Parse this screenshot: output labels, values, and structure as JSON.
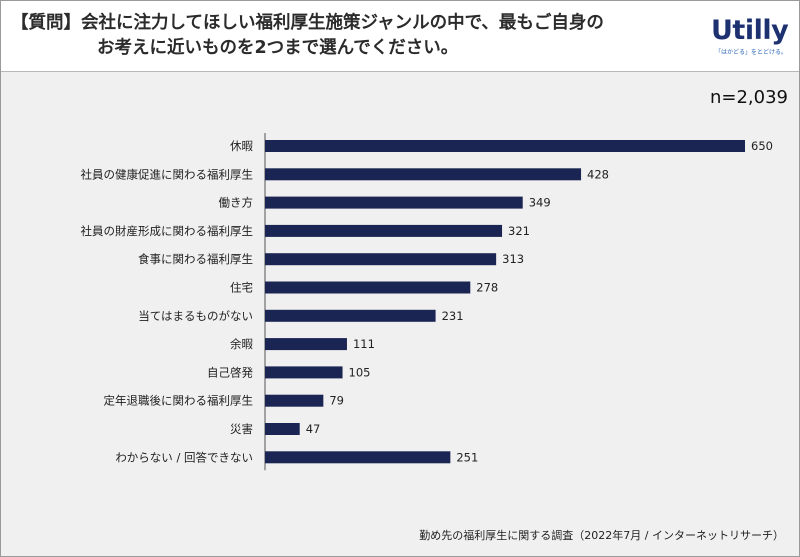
{
  "header": {
    "question_tag": "【質問】",
    "question_line1": "会社に注力してほしい福利厚生施策ジャンルの中で、最もご自身の",
    "question_line2": "お考えに近いものを2つまで選んでください。"
  },
  "logo": {
    "text": "Utilly",
    "tagline": "「はかどる」をとどける。",
    "color": "#1d3170"
  },
  "sample_size": "n=2,039",
  "source": "勤め先の福利厚生に関する調査（2022年7月 / インターネットリサーチ）",
  "chart_data": {
    "type": "bar",
    "orientation": "horizontal",
    "title": "",
    "xlabel": "",
    "ylabel": "",
    "categories": [
      "休暇",
      "社員の健康促進に関わる福利厚生",
      "働き方",
      "社員の財産形成に関わる福利厚生",
      "食事に関わる福利厚生",
      "住宅",
      "当てはまるものがない",
      "余暇",
      "自己啓発",
      "定年退職後に関わる福利厚生",
      "災害",
      "わからない / 回答できない"
    ],
    "values": [
      650,
      428,
      349,
      321,
      313,
      278,
      231,
      111,
      105,
      79,
      47,
      251
    ],
    "xlim": [
      0,
      650
    ],
    "grid": false,
    "legend": "none",
    "bar_color": "#1b2553"
  }
}
